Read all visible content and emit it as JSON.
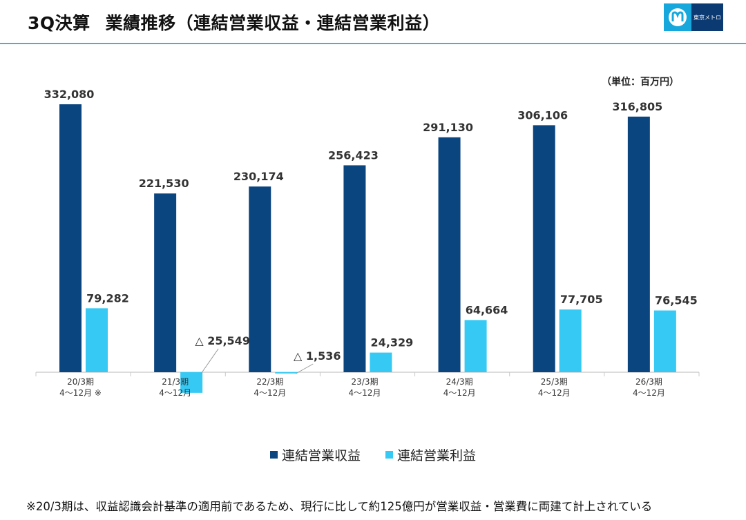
{
  "header": {
    "title_part1": "3Q決算",
    "title_part2": "業績推移（連結営業収益・連結営業利益）",
    "logo_text": "東京メトロ"
  },
  "unit_label": "（単位：百万円）",
  "footnote": "※20/3期は、収益認識会計基準の適用前であるため、現行に比して約125億円が営業収益・営業費に両建て計上されている",
  "chart_data": {
    "type": "bar",
    "categories": [
      [
        "20/3期",
        "4～12月 ※"
      ],
      [
        "21/3期",
        "4～12月"
      ],
      [
        "22/3期",
        "4～12月"
      ],
      [
        "23/3期",
        "4～12月"
      ],
      [
        "24/3期",
        "4～12月"
      ],
      [
        "25/3期",
        "4～12月"
      ],
      [
        "26/3期",
        "4～12月"
      ]
    ],
    "series": [
      {
        "name": "連結営業収益",
        "color": "#0b4580",
        "values": [
          332080,
          221530,
          230174,
          256423,
          291130,
          306106,
          316805
        ],
        "labels": [
          "332,080",
          "221,530",
          "230,174",
          "256,423",
          "291,130",
          "306,106",
          "316,805"
        ]
      },
      {
        "name": "連結営業利益",
        "color": "#35c9f4",
        "values": [
          79282,
          -25549,
          -1536,
          24329,
          64664,
          77705,
          76545
        ],
        "labels": [
          "79,282",
          "△ 25,549",
          "△ 1,536",
          "24,329",
          "64,664",
          "77,705",
          "76,545"
        ]
      }
    ],
    "ylim": [
      -30000,
      340000
    ],
    "grid": false,
    "legend": "bottom-center"
  }
}
